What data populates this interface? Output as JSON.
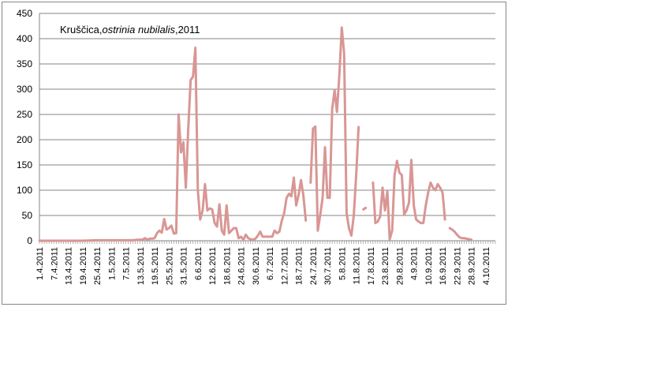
{
  "chart_data": {
    "type": "line",
    "title_parts": [
      "Kruščica,",
      "ostrinia nubilalis",
      ",2011"
    ],
    "xlabel": "",
    "ylabel": "",
    "ylim": [
      0,
      450
    ],
    "yticks": [
      0,
      50,
      100,
      150,
      200,
      250,
      300,
      350,
      400,
      450
    ],
    "grid": true,
    "legend": "none",
    "line_color": "#d99694",
    "x_ticks": [
      "1.4.2011",
      "7.4.2011",
      "13.4.2011",
      "19.4.2011",
      "25.4.2011",
      "1.5.2011",
      "7.5.2011",
      "13.5.2011",
      "19.5.2011",
      "25.5.2011",
      "31.5.2011",
      "6.6.2011",
      "12.6.2011",
      "18.6.2011",
      "24.6.2011",
      "30.6.2011",
      "6.7.2011",
      "12.7.2011",
      "18.7.2011",
      "24.7.2011",
      "30.7.2011",
      "5.8.2011",
      "11.8.2011",
      "17.8.2011",
      "23.8.2011",
      "29.8.2011",
      "4.9.2011",
      "10.9.2011",
      "16.9.2011",
      "22.9.2011",
      "28.9.2011",
      "4.10.2011"
    ],
    "x_start": "1.4.2011",
    "x_end": "8.10.2011",
    "series": [
      {
        "points": [
          [
            "1.4.2011",
            0
          ],
          [
            "8.4.2011",
            0
          ],
          [
            "13.4.2011",
            0
          ],
          [
            "19.4.2011",
            0
          ],
          [
            "25.4.2011",
            1
          ],
          [
            "1.5.2011",
            1
          ],
          [
            "7.5.2011",
            1
          ],
          [
            "10.5.2011",
            1
          ],
          [
            "12.5.2011",
            2
          ],
          [
            "14.5.2011",
            2
          ],
          [
            "15.5.2011",
            5
          ],
          [
            "16.5.2011",
            2
          ],
          [
            "17.5.2011",
            4
          ],
          [
            "18.5.2011",
            4
          ],
          [
            "19.5.2011",
            5
          ],
          [
            "20.5.2011",
            15
          ],
          [
            "21.5.2011",
            20
          ],
          [
            "22.5.2011",
            16
          ],
          [
            "23.5.2011",
            43
          ],
          [
            "24.5.2011",
            22
          ],
          [
            "25.5.2011",
            25
          ],
          [
            "26.5.2011",
            30
          ],
          [
            "27.5.2011",
            14
          ],
          [
            "28.5.2011",
            15
          ],
          [
            "29.5.2011",
            250
          ],
          [
            "30.5.2011",
            175
          ],
          [
            "31.5.2011",
            195
          ],
          [
            "1.6.2011",
            105
          ],
          [
            "2.6.2011",
            220
          ],
          [
            "3.6.2011",
            318
          ],
          [
            "4.6.2011",
            325
          ],
          [
            "5.6.2011",
            382
          ],
          [
            "6.6.2011",
            100
          ],
          [
            "7.6.2011",
            42
          ],
          [
            "8.6.2011",
            60
          ],
          [
            "9.6.2011",
            112
          ],
          [
            "10.6.2011",
            60
          ],
          [
            "11.6.2011",
            64
          ],
          [
            "12.6.2011",
            62
          ],
          [
            "13.6.2011",
            35
          ],
          [
            "14.6.2011",
            28
          ],
          [
            "15.6.2011",
            72
          ],
          [
            "16.6.2011",
            20
          ],
          [
            "17.6.2011",
            12
          ],
          [
            "18.6.2011",
            70
          ],
          [
            "19.6.2011",
            15
          ],
          [
            "20.6.2011",
            20
          ],
          [
            "21.6.2011",
            25
          ],
          [
            "22.6.2011",
            25
          ],
          [
            "23.6.2011",
            5
          ],
          [
            "24.6.2011",
            8
          ],
          [
            "25.6.2011",
            2
          ],
          [
            "26.6.2011",
            12
          ],
          [
            "27.6.2011",
            5
          ],
          [
            "28.6.2011",
            3
          ],
          [
            "29.6.2011",
            2
          ],
          [
            "30.6.2011",
            4
          ],
          [
            "1.7.2011",
            10
          ],
          [
            "2.7.2011",
            18
          ],
          [
            "3.7.2011",
            8
          ],
          [
            "4.7.2011",
            8
          ],
          [
            "5.7.2011",
            8
          ],
          [
            "6.7.2011",
            8
          ],
          [
            "7.7.2011",
            8
          ],
          [
            "8.7.2011",
            20
          ],
          [
            "9.7.2011",
            15
          ],
          [
            "10.7.2011",
            18
          ],
          [
            "11.7.2011",
            40
          ],
          [
            "12.7.2011",
            55
          ],
          [
            "13.7.2011",
            85
          ],
          [
            "14.7.2011",
            93
          ],
          [
            "15.7.2011",
            88
          ],
          [
            "16.7.2011",
            125
          ],
          [
            "17.7.2011",
            70
          ],
          [
            "18.7.2011",
            90
          ],
          [
            "19.7.2011",
            120
          ],
          [
            "20.7.2011",
            90
          ],
          [
            "21.7.2011",
            40
          ],
          null,
          [
            "23.7.2011",
            115
          ],
          [
            "24.7.2011",
            222
          ],
          [
            "25.7.2011",
            226
          ],
          [
            "26.7.2011",
            20
          ],
          [
            "27.7.2011",
            50
          ],
          [
            "28.7.2011",
            85
          ],
          [
            "29.7.2011",
            185
          ],
          [
            "30.7.2011",
            85
          ],
          [
            "31.7.2011",
            85
          ],
          [
            "1.8.2011",
            260
          ],
          [
            "2.8.2011",
            298
          ],
          [
            "3.8.2011",
            255
          ],
          [
            "4.8.2011",
            330
          ],
          [
            "5.8.2011",
            422
          ],
          [
            "6.8.2011",
            370
          ],
          [
            "7.8.2011",
            55
          ],
          [
            "8.8.2011",
            25
          ],
          [
            "9.8.2011",
            10
          ],
          [
            "10.8.2011",
            50
          ],
          [
            "11.8.2011",
            130
          ],
          [
            "12.8.2011",
            225
          ],
          null,
          [
            "14.8.2011",
            62
          ],
          [
            "15.8.2011",
            65
          ],
          null,
          [
            "18.8.2011",
            115
          ],
          [
            "19.8.2011",
            35
          ],
          [
            "20.8.2011",
            38
          ],
          [
            "21.8.2011",
            48
          ],
          [
            "22.8.2011",
            105
          ],
          [
            "23.8.2011",
            60
          ],
          [
            "24.8.2011",
            98
          ],
          [
            "25.8.2011",
            3
          ],
          [
            "26.8.2011",
            20
          ],
          [
            "27.8.2011",
            130
          ],
          [
            "28.8.2011",
            158
          ],
          [
            "29.8.2011",
            135
          ],
          [
            "30.8.2011",
            130
          ],
          [
            "31.8.2011",
            52
          ],
          [
            "1.9.2011",
            60
          ],
          [
            "2.9.2011",
            75
          ],
          [
            "3.9.2011",
            160
          ],
          [
            "4.9.2011",
            70
          ],
          [
            "5.9.2011",
            42
          ],
          [
            "6.9.2011",
            38
          ],
          [
            "7.9.2011",
            35
          ],
          [
            "8.9.2011",
            35
          ],
          [
            "9.9.2011",
            70
          ],
          [
            "10.9.2011",
            95
          ],
          [
            "11.9.2011",
            115
          ],
          [
            "12.9.2011",
            105
          ],
          [
            "13.9.2011",
            100
          ],
          [
            "14.9.2011",
            112
          ],
          [
            "15.9.2011",
            105
          ],
          [
            "16.9.2011",
            95
          ],
          [
            "17.9.2011",
            42
          ],
          null,
          [
            "19.9.2011",
            25
          ],
          [
            "20.9.2011",
            22
          ],
          [
            "21.9.2011",
            18
          ],
          [
            "22.9.2011",
            12
          ],
          [
            "23.9.2011",
            7
          ],
          [
            "24.9.2011",
            5
          ],
          [
            "25.9.2011",
            5
          ],
          [
            "26.9.2011",
            4
          ],
          [
            "27.9.2011",
            3
          ],
          [
            "28.9.2011",
            2
          ]
        ]
      }
    ]
  }
}
